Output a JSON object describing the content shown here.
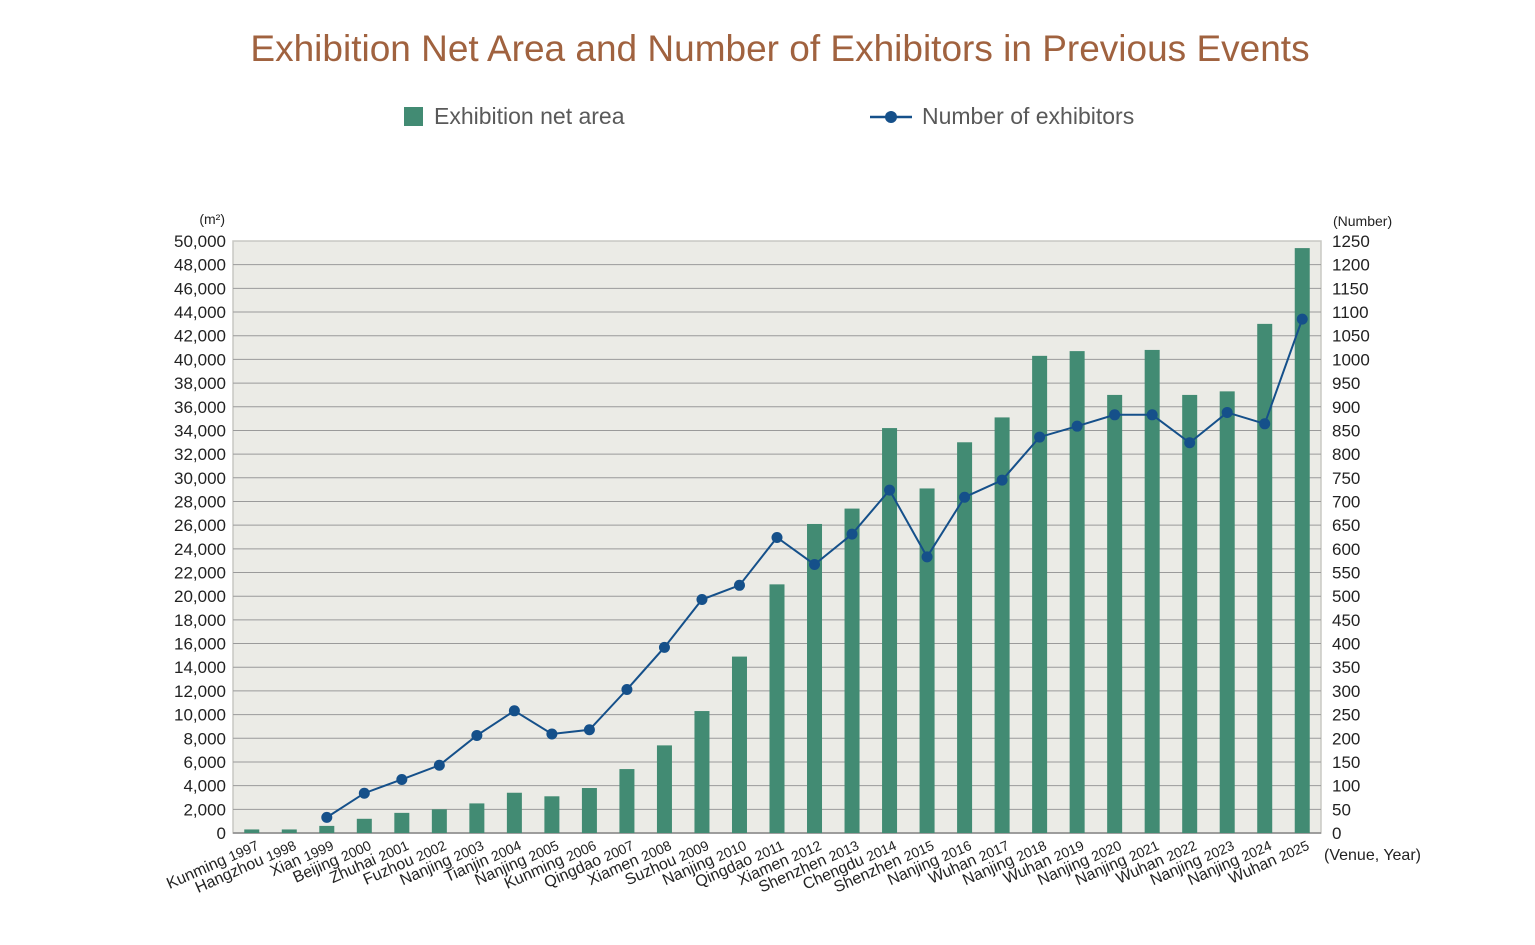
{
  "chart_data": {
    "type": "bar",
    "title": "Exhibition Net Area and Number of Exhibitors in Previous Events",
    "legend": {
      "position": "top",
      "items": [
        {
          "label": "Exhibition net area",
          "kind": "bar",
          "color": "#428b73"
        },
        {
          "label": "Number of exhibitors",
          "kind": "line",
          "color": "#15508a"
        }
      ]
    },
    "xlabel": "(Venue, Year)",
    "ylabel_left": "(m²)",
    "ylabel_right": "(Number)",
    "ylim_left": [
      0,
      50000
    ],
    "ylim_right": [
      0,
      1250
    ],
    "yticks_left": [
      "0",
      "2,000",
      "4,000",
      "6,000",
      "8,000",
      "10,000",
      "12,000",
      "14,000",
      "16,000",
      "18,000",
      "20,000",
      "22,000",
      "24,000",
      "26,000",
      "28,000",
      "30,000",
      "32,000",
      "34,000",
      "36,000",
      "38,000",
      "40,000",
      "42,000",
      "44,000",
      "46,000",
      "48,000",
      "50,000"
    ],
    "yticks_right": [
      "0",
      "50",
      "100",
      "150",
      "200",
      "250",
      "300",
      "350",
      "400",
      "450",
      "500",
      "550",
      "600",
      "650",
      "700",
      "750",
      "800",
      "850",
      "900",
      "950",
      "1000",
      "1050",
      "1100",
      "1150",
      "1200",
      "1250"
    ],
    "grid": true,
    "categories": [
      "Kunming 1997",
      "Hangzhou 1998",
      "Xian 1999",
      "Beijing 2000",
      "Zhuhai 2001",
      "Fuzhou 2002",
      "Nanjing 2003",
      "Tianjin 2004",
      "Nanjing 2005",
      "Kunming 2006",
      "Qingdao 2007",
      "Xiamen 2008",
      "Suzhou 2009",
      "Nanjing 2010",
      "Qingdao 2011",
      "Xiamen 2012",
      "Shenzhen 2013",
      "Chengdu 2014",
      "Shenzhen 2015",
      "Nanjing 2016",
      "Wuhan 2017",
      "Nanjing 2018",
      "Wuhan 2019",
      "Nanjing 2020",
      "Nanjing 2021",
      "Wuhan 2022",
      "Nanjing 2023",
      "Nanjing 2024",
      "Wuhan 2025"
    ],
    "series": [
      {
        "name": "Exhibition net area",
        "type": "bar",
        "axis": "left",
        "color": "#428b73",
        "values": [
          300,
          300,
          600,
          1200,
          1700,
          2000,
          2500,
          3400,
          3100,
          3800,
          5400,
          7400,
          10300,
          14900,
          21000,
          26100,
          27400,
          34200,
          29100,
          33000,
          35100,
          40300,
          40700,
          37000,
          40800,
          37000,
          37300,
          43000,
          49400
        ]
      },
      {
        "name": "Number of exhibitors",
        "type": "line",
        "axis": "right",
        "color": "#15508a",
        "values": [
          null,
          null,
          33,
          84,
          113,
          143,
          206,
          258,
          209,
          218,
          303,
          392,
          493,
          523,
          624,
          567,
          631,
          724,
          583,
          709,
          745,
          836,
          859,
          883,
          883,
          824,
          888,
          864,
          1085
        ]
      }
    ],
    "colors": {
      "title": "#a0623f",
      "plot_background": "#ebebe6",
      "gridline": "#9a9a9a"
    }
  }
}
